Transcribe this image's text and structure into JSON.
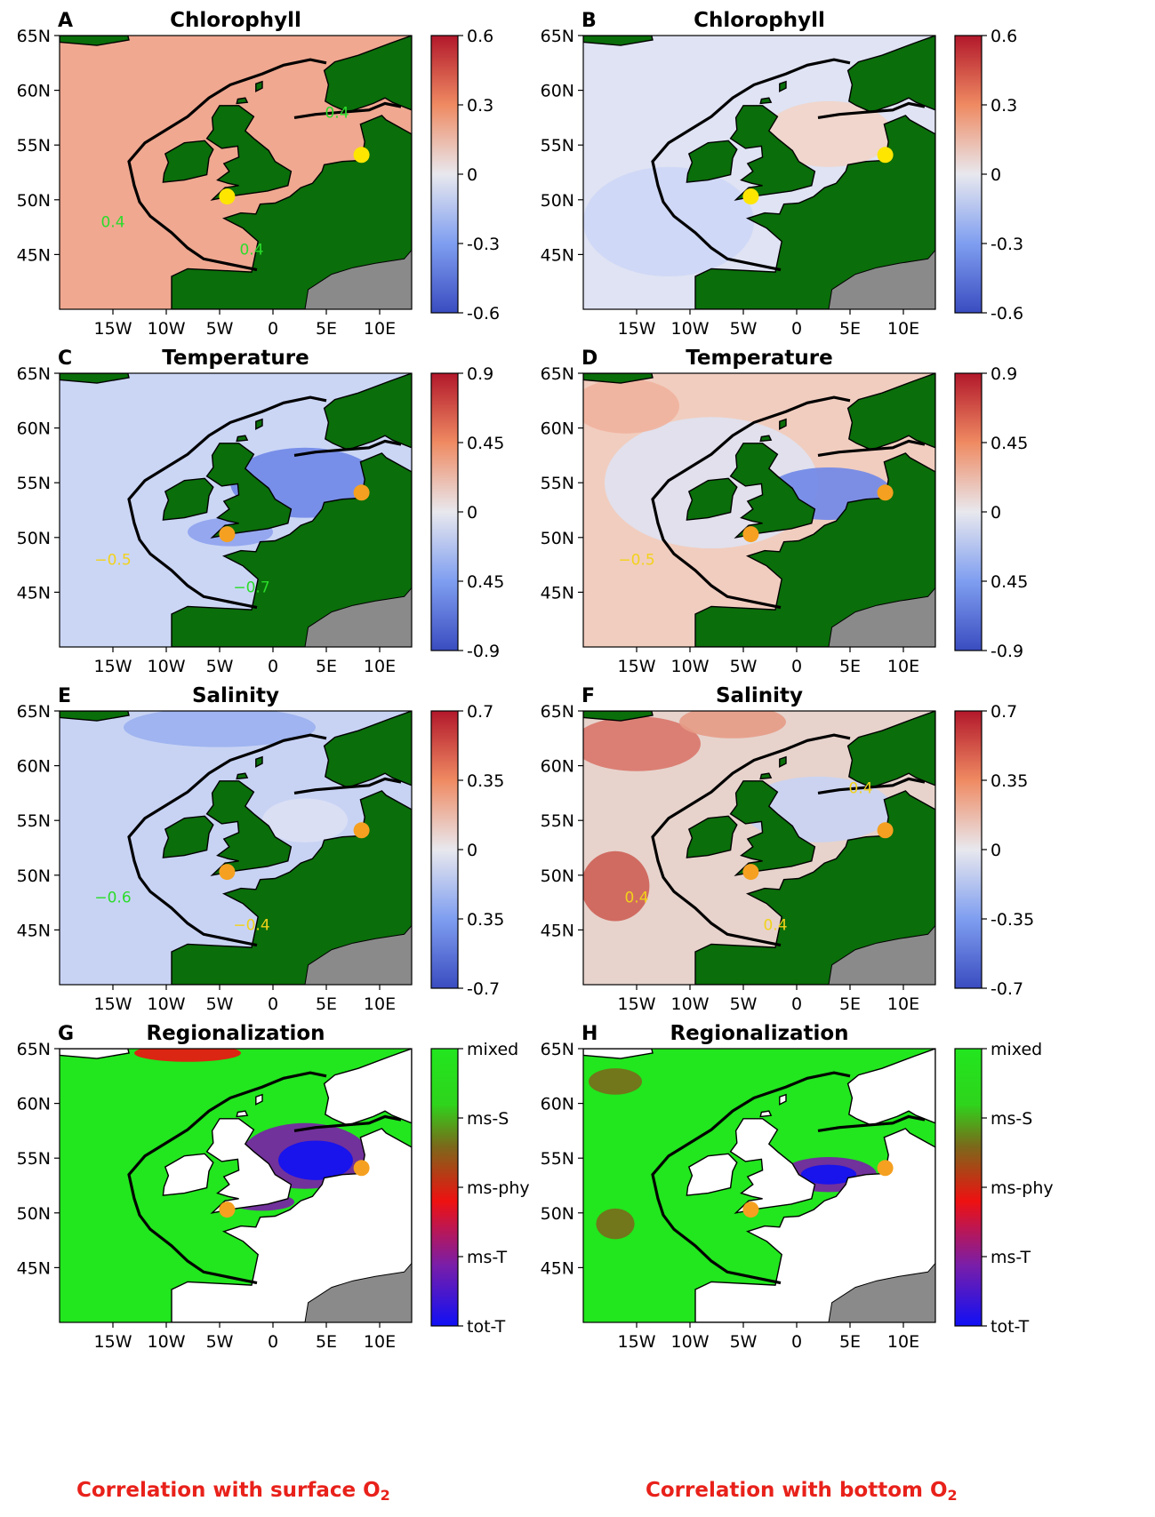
{
  "figure": {
    "panels": [
      {
        "letter": "A",
        "title": "Chlorophyll",
        "variable": "chlorophyll",
        "o2_layer": "surface",
        "colorbar": {
          "type": "continuous",
          "ticks": [
            "0.6",
            "0.3",
            "0",
            "-0.3",
            "-0.6"
          ],
          "range": [
            -0.6,
            0.6
          ]
        },
        "contour_labels": [
          "0.4",
          "0.4",
          "0.4"
        ],
        "marker_color": "#ffe600",
        "field_style": "warm"
      },
      {
        "letter": "B",
        "title": "Chlorophyll",
        "variable": "chlorophyll",
        "o2_layer": "bottom",
        "colorbar": {
          "type": "continuous",
          "ticks": [
            "0.6",
            "0.3",
            "0",
            "-0.3",
            "-0.6"
          ],
          "range": [
            -0.6,
            0.6
          ]
        },
        "contour_labels": [],
        "marker_color": "#ffe600",
        "field_style": "neutral"
      },
      {
        "letter": "C",
        "title": "Temperature",
        "variable": "temperature",
        "o2_layer": "surface",
        "colorbar": {
          "type": "continuous",
          "ticks": [
            "0.9",
            "0.45",
            "0",
            "0.45",
            "-0.9"
          ],
          "range": [
            -0.9,
            0.9
          ]
        },
        "contour_labels": [
          "−0.5",
          "−0.7"
        ],
        "marker_color": "#f5a020",
        "field_style": "cool"
      },
      {
        "letter": "D",
        "title": "Temperature",
        "variable": "temperature",
        "o2_layer": "bottom",
        "colorbar": {
          "type": "continuous",
          "ticks": [
            "0.9",
            "0.45",
            "0",
            "0.45",
            "-0.9"
          ],
          "range": [
            -0.9,
            0.9
          ]
        },
        "contour_labels": [
          "−0.5"
        ],
        "marker_color": "#f5a020",
        "field_style": "mixedwarm"
      },
      {
        "letter": "E",
        "title": "Salinity",
        "variable": "salinity",
        "o2_layer": "surface",
        "colorbar": {
          "type": "continuous",
          "ticks": [
            "0.7",
            "0.35",
            "0",
            "0.35",
            "-0.7"
          ],
          "range": [
            -0.7,
            0.7
          ]
        },
        "contour_labels": [
          "−0.6",
          "−0.4"
        ],
        "marker_color": "#f5a020",
        "field_style": "coolsalt"
      },
      {
        "letter": "F",
        "title": "Salinity",
        "variable": "salinity",
        "o2_layer": "bottom",
        "colorbar": {
          "type": "continuous",
          "ticks": [
            "0.7",
            "0.35",
            "0",
            "-0.35",
            "-0.7"
          ],
          "range": [
            -0.7,
            0.7
          ]
        },
        "contour_labels": [
          "0.4",
          "0.4",
          "0.4"
        ],
        "marker_color": "#f5a020",
        "field_style": "warmsalt"
      },
      {
        "letter": "G",
        "title": "Regionalization",
        "variable": "regionalization",
        "o2_layer": "surface",
        "colorbar": {
          "type": "categorical",
          "ticks": [
            "mixed",
            "ms-S",
            "ms-phy",
            "ms-T",
            "tot-T"
          ]
        },
        "contour_labels": [],
        "marker_color": "#f5a020",
        "field_style": "regionG"
      },
      {
        "letter": "H",
        "title": "Regionalization",
        "variable": "regionalization",
        "o2_layer": "bottom",
        "colorbar": {
          "type": "categorical",
          "ticks": [
            "mixed",
            "ms-S",
            "ms-phy",
            "ms-T",
            "tot-T"
          ]
        },
        "contour_labels": [],
        "marker_color": "#f5a020",
        "field_style": "regionH"
      }
    ],
    "axes": {
      "x_ticks": [
        "15W",
        "10W",
        "5W",
        "0",
        "5E",
        "10E"
      ],
      "x_values": [
        -15,
        -10,
        -5,
        0,
        5,
        10
      ],
      "xlim": [
        -20,
        13
      ],
      "y_ticks": [
        "65N",
        "60N",
        "55N",
        "50N",
        "45N"
      ],
      "y_values": [
        65,
        60,
        55,
        50,
        45
      ],
      "ylim": [
        40,
        65
      ]
    },
    "markers": [
      {
        "lon": -4.3,
        "lat": 50.3
      },
      {
        "lon": 8.3,
        "lat": 54.1
      }
    ],
    "captions": {
      "left": {
        "text": "Correlation with surface O",
        "subscript": "2"
      },
      "right": {
        "text": "Correlation with bottom O",
        "subscript": "2"
      }
    }
  },
  "chart_data": [
    {
      "type": "heatmap",
      "panel": "A",
      "title": "Chlorophyll",
      "legend": "colorbar",
      "colorbar_ticks": [
        0.6,
        0.3,
        0,
        -0.3,
        -0.6
      ],
      "xlim": [
        -20,
        13
      ],
      "ylim": [
        40,
        65
      ],
      "contour_labels": [
        0.4,
        0.4,
        0.4
      ],
      "values": "spatial correlation field (not numeric-labelled)"
    },
    {
      "type": "heatmap",
      "panel": "B",
      "title": "Chlorophyll",
      "colorbar_ticks": [
        0.6,
        0.3,
        0,
        -0.3,
        -0.6
      ],
      "xlim": [
        -20,
        13
      ],
      "ylim": [
        40,
        65
      ]
    },
    {
      "type": "heatmap",
      "panel": "C",
      "title": "Temperature",
      "colorbar_ticks": [
        0.9,
        0.45,
        0,
        0.45,
        -0.9
      ],
      "xlim": [
        -20,
        13
      ],
      "ylim": [
        40,
        65
      ],
      "contour_labels": [
        -0.5,
        -0.7
      ]
    },
    {
      "type": "heatmap",
      "panel": "D",
      "title": "Temperature",
      "colorbar_ticks": [
        0.9,
        0.45,
        0,
        0.45,
        -0.9
      ],
      "xlim": [
        -20,
        13
      ],
      "ylim": [
        40,
        65
      ],
      "contour_labels": [
        -0.5
      ]
    },
    {
      "type": "heatmap",
      "panel": "E",
      "title": "Salinity",
      "colorbar_ticks": [
        0.7,
        0.35,
        0,
        0.35,
        -0.7
      ],
      "xlim": [
        -20,
        13
      ],
      "ylim": [
        40,
        65
      ],
      "contour_labels": [
        -0.6,
        -0.4
      ]
    },
    {
      "type": "heatmap",
      "panel": "F",
      "title": "Salinity",
      "colorbar_ticks": [
        0.7,
        0.35,
        0,
        -0.35,
        -0.7
      ],
      "xlim": [
        -20,
        13
      ],
      "ylim": [
        40,
        65
      ],
      "contour_labels": [
        0.4,
        0.4,
        0.4
      ]
    },
    {
      "type": "heatmap",
      "panel": "G",
      "title": "Regionalization",
      "categories": [
        "mixed",
        "ms-S",
        "ms-phy",
        "ms-T",
        "tot-T"
      ],
      "xlim": [
        -20,
        13
      ],
      "ylim": [
        40,
        65
      ]
    },
    {
      "type": "heatmap",
      "panel": "H",
      "title": "Regionalization",
      "categories": [
        "mixed",
        "ms-S",
        "ms-phy",
        "ms-T",
        "tot-T"
      ],
      "xlim": [
        -20,
        13
      ],
      "ylim": [
        40,
        65
      ]
    }
  ],
  "colors": {
    "land": "#0a6e0a",
    "land_grey": "#8a8a8a",
    "cat_mixed": "#22e61e",
    "cat_ms_S": "#7a6a1a",
    "cat_ms_phy": "#ee1111",
    "cat_ms_T": "#7a1ea8",
    "cat_tot_T": "#1010f5",
    "caption": "#e8211a"
  }
}
